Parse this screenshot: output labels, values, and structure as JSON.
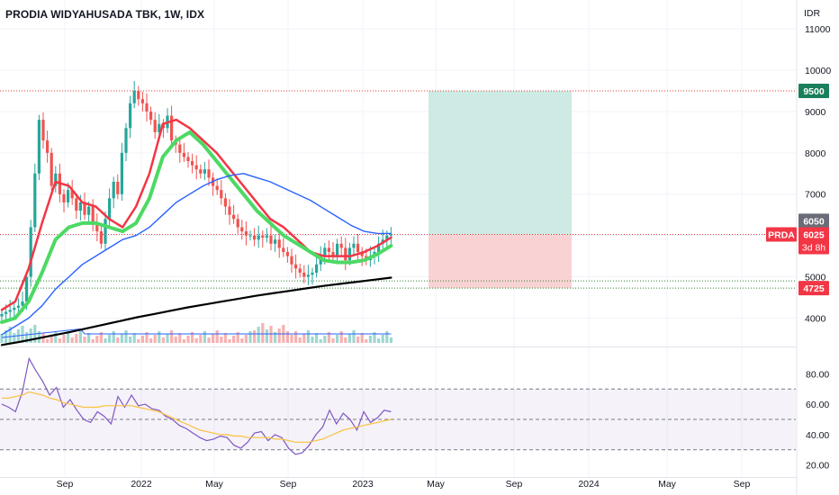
{
  "header": {
    "title": "PRODIA WIDYAHUSADA TBK, 1W, IDX"
  },
  "price_axis": {
    "currency": "IDR",
    "ticks": [
      4000,
      5000,
      6000,
      7000,
      8000,
      9000,
      10000,
      11000
    ]
  },
  "badges": {
    "target": "9500",
    "upper": "6050",
    "symbol": "PRDA",
    "last": "6025",
    "countdown": "3d 8h",
    "stop": "4725"
  },
  "rsi_axis": {
    "ticks": [
      "80.00",
      "60.00",
      "40.00",
      "20.00"
    ]
  },
  "time_axis": {
    "labels": [
      "Sep",
      "2022",
      "May",
      "Sep",
      "2023",
      "May",
      "Sep",
      "2024",
      "May",
      "Sep"
    ]
  },
  "colors": {
    "up": "#26a69a",
    "down": "#ef5350",
    "ema_red": "#f23645",
    "ema_green_light": "#4cd964",
    "ema_green_dark": "#388e3c",
    "ma_blue": "#2962ff",
    "ma_black": "#000000",
    "rsi": "#7e57c2",
    "rsi_ma": "#f9c23c",
    "target_zone": "#cdeae4",
    "stop_zone": "#f9d3d3"
  },
  "chart_data": [
    {
      "type": "candlestick",
      "title": "PRODIA WIDYAHUSADA TBK, 1W, IDX",
      "ylabel": "IDR",
      "ylim": [
        3400,
        11700
      ],
      "horizontal_levels": {
        "target": 9500,
        "entry": 6025,
        "upper": 6050,
        "stop": 4725,
        "support": 4900
      },
      "position_zones": {
        "target_top": 9500,
        "entry": 6025,
        "stop_bottom": 4725
      },
      "candles_weekly_close": [
        4100,
        4150,
        4200,
        4250,
        4300,
        4400,
        5000,
        6200,
        7500,
        8800,
        8300,
        8000,
        7200,
        7500,
        7000,
        6800,
        7100,
        6900,
        6600,
        6800,
        6500,
        6700,
        6300,
        6100,
        5800,
        6400,
        6900,
        7300,
        7000,
        8000,
        8600,
        9200,
        9500,
        9300,
        9200,
        9000,
        8800,
        8500,
        8700,
        8600,
        8900,
        8300,
        8200,
        8000,
        7900,
        7800,
        7700,
        7600,
        7500,
        7600,
        7400,
        7200,
        7100,
        6900,
        6700,
        6500,
        6400,
        6200,
        6100,
        6000,
        6000,
        5900,
        6000,
        5950,
        6000,
        5800,
        5900,
        5700,
        5600,
        5500,
        5300,
        5200,
        5100,
        5000,
        5050,
        5100,
        5300,
        5500,
        5700,
        5600,
        5500,
        5800,
        5700,
        5400,
        5700,
        5800,
        5600,
        5500,
        5400,
        5500,
        5600,
        5800,
        5900,
        6000,
        6025
      ],
      "series": [
        {
          "name": "",
          "color": "#f23645",
          "values": [
            4200,
            4400,
            5200,
            6300,
            7300,
            7200,
            6800,
            6700,
            6400,
            6200,
            6700,
            7500,
            8700,
            8800,
            8600,
            8300,
            8000,
            7600,
            7200,
            6800,
            6400,
            6200,
            5900,
            5600,
            5500,
            5500,
            5500,
            5600,
            5750,
            5950
          ]
        },
        {
          "name": "",
          "color": "#4cd964",
          "values": [
            3900,
            4000,
            4400,
            5100,
            5900,
            6200,
            6300,
            6300,
            6200,
            6100,
            6300,
            6900,
            7900,
            8300,
            8500,
            8200,
            7800,
            7400,
            7000,
            6600,
            6300,
            6000,
            5800,
            5600,
            5400,
            5350,
            5350,
            5400,
            5550,
            5750
          ]
        },
        {
          "name": "",
          "color": "#2962ff",
          "values": [
            3600,
            3800,
            4000,
            4300,
            4700,
            5000,
            5300,
            5500,
            5700,
            5900,
            6000,
            6200,
            6500,
            6800,
            7000,
            7200,
            7350,
            7450,
            7500,
            7400,
            7300,
            7150,
            7000,
            6850,
            6650,
            6450,
            6250,
            6100,
            6050,
            6050
          ]
        },
        {
          "name": "",
          "color": "#000000",
          "values": [
            3350,
            3420,
            3500,
            3580,
            3660,
            3750,
            3840,
            3930,
            4020,
            4100,
            4180,
            4260,
            4330,
            4400,
            4470,
            4540,
            4600,
            4660,
            4720,
            4780,
            4830,
            4880,
            4930,
            4980
          ]
        }
      ]
    },
    {
      "type": "line",
      "title": "RSI",
      "ylim": [
        18,
        95
      ],
      "bands": {
        "upper": 70,
        "middle": 50,
        "lower": 30
      },
      "series": [
        {
          "name": "",
          "color": "#7e57c2",
          "values": [
            60,
            58,
            55,
            68,
            90,
            82,
            75,
            66,
            71,
            58,
            63,
            56,
            50,
            48,
            55,
            52,
            47,
            65,
            58,
            66,
            59,
            60,
            57,
            56,
            52,
            50,
            46,
            44,
            41,
            38,
            36,
            37,
            39,
            38,
            33,
            31,
            35,
            41,
            42,
            36,
            40,
            38,
            31,
            27,
            28,
            33,
            40,
            45,
            56,
            47,
            54,
            50,
            43,
            55,
            48,
            51,
            56,
            55
          ]
        },
        {
          "name": "",
          "color": "#f9c23c",
          "values": [
            64,
            64,
            65,
            66,
            68,
            67,
            66,
            64,
            63,
            61,
            60,
            59,
            58,
            58,
            58,
            59,
            59,
            59,
            59,
            59,
            58,
            57,
            56,
            55,
            53,
            51,
            49,
            47,
            45,
            43,
            42,
            41,
            40,
            40,
            39,
            39,
            38,
            38,
            38,
            38,
            37,
            37,
            36,
            35,
            35,
            35,
            36,
            37,
            39,
            41,
            43,
            44,
            45,
            46,
            47,
            48,
            49,
            50
          ]
        }
      ]
    }
  ]
}
